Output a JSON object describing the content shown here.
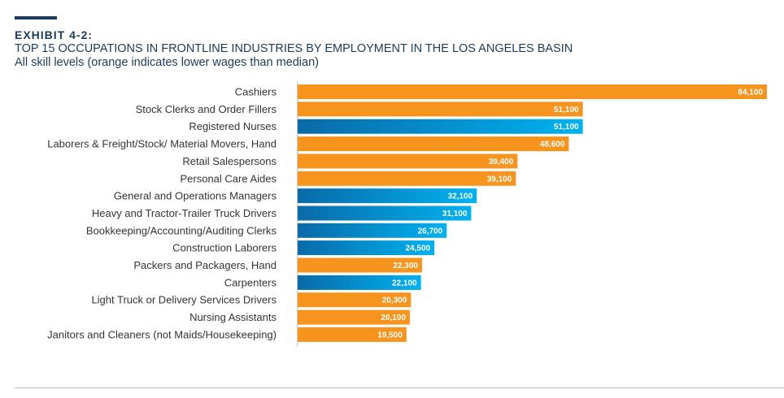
{
  "header": {
    "exhibit": "EXHIBIT 4-2:",
    "title": "TOP 15 OCCUPATIONS IN FRONTLINE INDUSTRIES BY EMPLOYMENT IN THE LOS ANGELES BASIN",
    "subtitle": "All skill levels  (orange indicates lower wages than median)"
  },
  "colors": {
    "lower_wage": "#f7941d",
    "higher_wage_start": "#0a6aa8",
    "higher_wage_end": "#00b2f0",
    "header": "#1b3a5c"
  },
  "chart_data": {
    "type": "bar",
    "orientation": "horizontal",
    "title": "TOP 15 OCCUPATIONS IN FRONTLINE INDUSTRIES BY EMPLOYMENT IN THE LOS ANGELES BASIN",
    "subtitle": "All skill levels  (orange indicates lower wages than median)",
    "xlabel": "",
    "ylabel": "",
    "xlim": [
      0,
      84100
    ],
    "grid": false,
    "categories": [
      "Cashiers",
      "Stock Clerks and Order Fillers",
      "Registered Nurses",
      "Laborers & Freight/Stock/ Material Movers, Hand",
      "Retail Salespersons",
      "Personal Care Aides",
      "General and Operations Managers",
      "Heavy and Tractor-Trailer Truck Drivers",
      "Bookkeeping/Accounting/Auditing Clerks",
      "Construction Laborers",
      "Packers and Packagers, Hand",
      "Carpenters",
      "Light Truck or Delivery Services Drivers",
      "Nursing Assistants",
      "Janitors and Cleaners (not Maids/Housekeeping)"
    ],
    "values": [
      84100,
      51100,
      51100,
      48600,
      39400,
      39100,
      32100,
      31100,
      26700,
      24500,
      22300,
      22100,
      20300,
      20100,
      19500
    ],
    "value_labels": [
      "84,100",
      "51,100",
      "51,100",
      "48,600",
      "39,400",
      "39,100",
      "32,100",
      "31,100",
      "26,700",
      "24,500",
      "22,300",
      "22,100",
      "20,300",
      "20,100",
      "19,500"
    ],
    "lower_wage": [
      true,
      true,
      false,
      true,
      true,
      true,
      false,
      false,
      false,
      false,
      true,
      false,
      true,
      true,
      true
    ]
  }
}
